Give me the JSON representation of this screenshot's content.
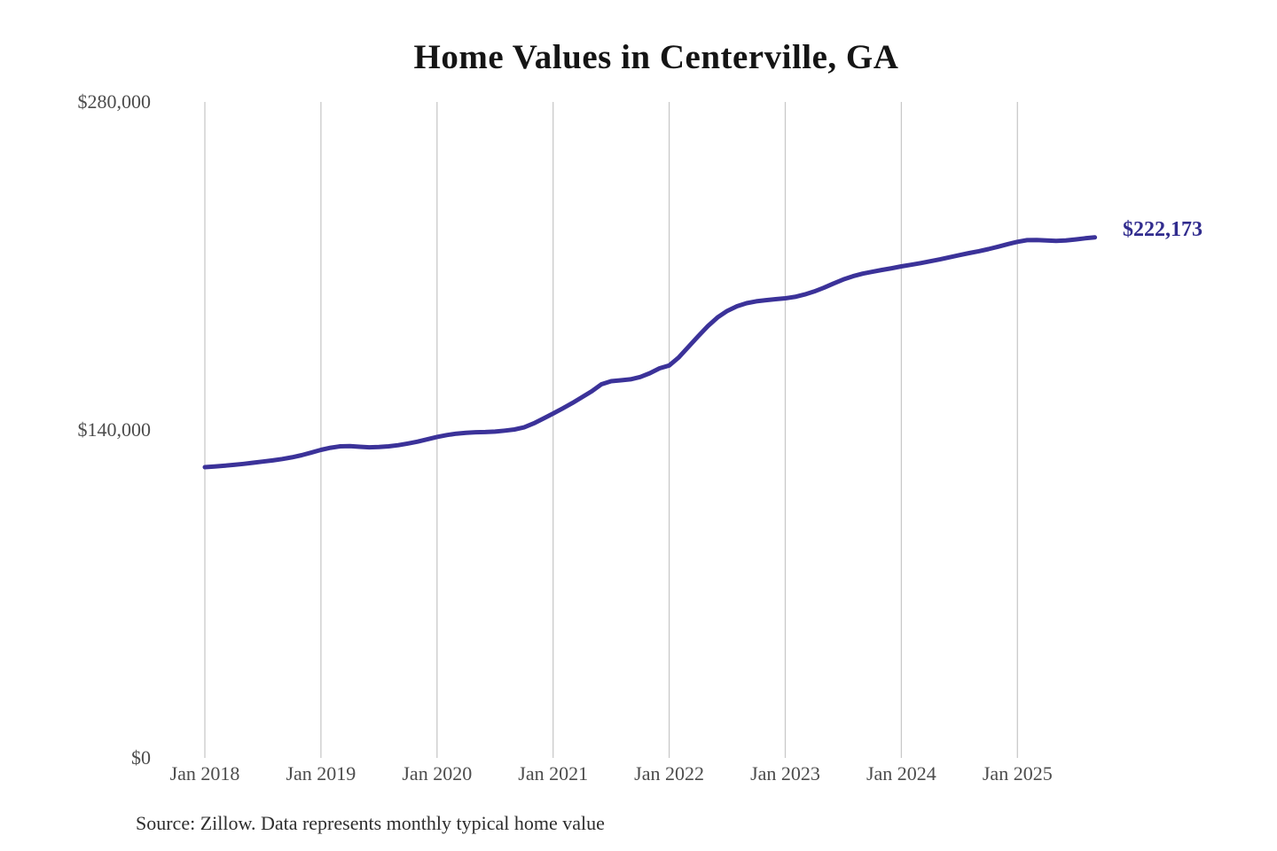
{
  "chart_data": {
    "type": "line",
    "title": "Home Values in Centerville, GA",
    "source": "Source: Zillow. Data represents monthly typical home value",
    "legend": "none",
    "grid": "vertical-yearly",
    "line_color": "#3b3299",
    "end_label_color": "#312c8e",
    "gridline_color": "#c9c9c9",
    "ylim": [
      0,
      280000
    ],
    "y_ticks": [
      {
        "value": 0,
        "label": "$0"
      },
      {
        "value": 140000,
        "label": "$140,000"
      },
      {
        "value": 280000,
        "label": "$280,000"
      }
    ],
    "x_tick_labels": [
      "Jan 2018",
      "Jan 2019",
      "Jan 2020",
      "Jan 2021",
      "Jan 2022",
      "Jan 2023",
      "Jan 2024",
      "Jan 2025"
    ],
    "series_name": "Monthly typical home value",
    "frequency": "monthly",
    "x_start": "Jan 2018",
    "x_end": "Sep 2025",
    "end_label": "$222,173",
    "end_value": 222173,
    "values": [
      124100,
      124400,
      124700,
      125100,
      125500,
      126000,
      126500,
      127000,
      127600,
      128300,
      129200,
      130300,
      131500,
      132400,
      133000,
      133100,
      132800,
      132600,
      132700,
      133000,
      133500,
      134200,
      135000,
      136000,
      137000,
      137800,
      138400,
      138800,
      139000,
      139100,
      139300,
      139700,
      140200,
      141100,
      142800,
      144900,
      147000,
      149200,
      151500,
      154000,
      156500,
      159500,
      160800,
      161200,
      161600,
      162600,
      164200,
      166300,
      167500,
      171000,
      175500,
      180000,
      184300,
      188000,
      190800,
      192800,
      194100,
      194900,
      195400,
      195800,
      196200,
      196800,
      197800,
      199100,
      200700,
      202500,
      204200,
      205600,
      206700,
      207500,
      208300,
      209000,
      209800,
      210500,
      211200,
      212000,
      212800,
      213700,
      214600,
      215500,
      216300,
      217200,
      218200,
      219300,
      220300,
      221000,
      221100,
      220900,
      220700,
      220900,
      221300,
      221800,
      222173
    ]
  }
}
